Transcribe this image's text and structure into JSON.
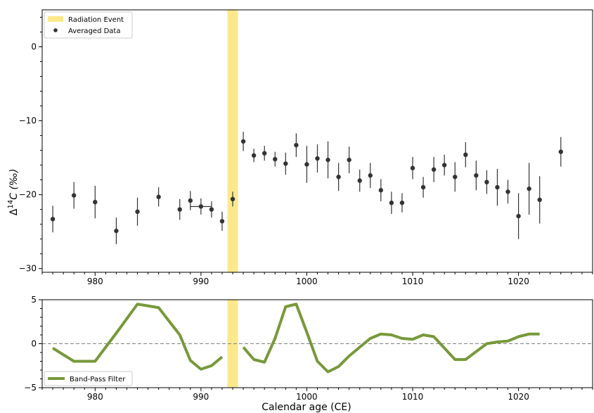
{
  "chart_data": [
    {
      "type": "scatter",
      "xlabel": "",
      "ylabel": "Δ",
      "ylabel_sup": "14",
      "ylabel_rest": "C (‰)",
      "xlim": [
        975,
        1027
      ],
      "ylim": [
        -30.5,
        5
      ],
      "x_ticks": [
        980,
        990,
        1000,
        1010,
        1020
      ],
      "y_ticks": [
        0,
        -10,
        -20,
        -30
      ],
      "legend_position": "top-left",
      "radiation_event": {
        "name": "Radiation Event",
        "x_start": 992.5,
        "x_end": 993.5,
        "color": "#fde98c"
      },
      "series": [
        {
          "name": "Averaged Data",
          "color": "#333333",
          "points": [
            {
              "x": 976,
              "y": -23.3,
              "err": 1.8
            },
            {
              "x": 978,
              "y": -20.1,
              "err": 1.8
            },
            {
              "x": 980,
              "y": -21.0,
              "err": 2.2
            },
            {
              "x": 982,
              "y": -24.9,
              "err": 1.8
            },
            {
              "x": 984,
              "y": -22.3,
              "err": 1.9
            },
            {
              "x": 986,
              "y": -20.3,
              "err": 1.3
            },
            {
              "x": 988,
              "y": -22.0,
              "err": 1.4
            },
            {
              "x": 989,
              "y": -20.8,
              "err": 1.3
            },
            {
              "x": 990,
              "y": -21.6,
              "err": 1.1,
              "xerr": 1.0
            },
            {
              "x": 991,
              "y": -22.0,
              "err": 1.1
            },
            {
              "x": 992,
              "y": -23.6,
              "err": 1.3
            },
            {
              "x": 993,
              "y": -20.6,
              "err": 1.0
            },
            {
              "x": 994,
              "y": -12.8,
              "err": 1.3
            },
            {
              "x": 995,
              "y": -14.7,
              "err": 0.9
            },
            {
              "x": 996,
              "y": -14.4,
              "err": 1.0
            },
            {
              "x": 997,
              "y": -15.2,
              "err": 1.0
            },
            {
              "x": 998,
              "y": -15.8,
              "err": 1.5
            },
            {
              "x": 999,
              "y": -13.3,
              "err": 1.6
            },
            {
              "x": 1000,
              "y": -15.9,
              "err": 2.5
            },
            {
              "x": 1001,
              "y": -15.1,
              "err": 1.9
            },
            {
              "x": 1002,
              "y": -15.3,
              "err": 2.5
            },
            {
              "x": 1003,
              "y": -17.6,
              "err": 1.9
            },
            {
              "x": 1004,
              "y": -15.3,
              "err": 1.8
            },
            {
              "x": 1005,
              "y": -18.1,
              "err": 1.5
            },
            {
              "x": 1006,
              "y": -17.4,
              "err": 1.7
            },
            {
              "x": 1007,
              "y": -19.4,
              "err": 1.5
            },
            {
              "x": 1008,
              "y": -21.1,
              "err": 1.5
            },
            {
              "x": 1009,
              "y": -21.1,
              "err": 1.3
            },
            {
              "x": 1010,
              "y": -16.4,
              "err": 1.5
            },
            {
              "x": 1011,
              "y": -19.0,
              "err": 1.4
            },
            {
              "x": 1012,
              "y": -16.6,
              "err": 1.7
            },
            {
              "x": 1013,
              "y": -16.0,
              "err": 1.4
            },
            {
              "x": 1014,
              "y": -17.6,
              "err": 2.0
            },
            {
              "x": 1015,
              "y": -14.6,
              "err": 1.7
            },
            {
              "x": 1016,
              "y": -17.4,
              "err": 2.0
            },
            {
              "x": 1017,
              "y": -18.3,
              "err": 1.6
            },
            {
              "x": 1018,
              "y": -19.0,
              "err": 2.5
            },
            {
              "x": 1019,
              "y": -19.6,
              "err": 1.6
            },
            {
              "x": 1020,
              "y": -22.9,
              "err": 3.1
            },
            {
              "x": 1021,
              "y": -19.2,
              "err": 3.5
            },
            {
              "x": 1022,
              "y": -20.7,
              "err": 3.2
            },
            {
              "x": 1024,
              "y": -14.2,
              "err": 2.0
            }
          ]
        }
      ]
    },
    {
      "type": "line",
      "xlabel": "Calendar age (CE)",
      "ylabel": "",
      "xlim": [
        975,
        1027
      ],
      "ylim": [
        -5,
        5
      ],
      "x_ticks": [
        980,
        990,
        1000,
        1010,
        1020
      ],
      "y_ticks": [
        5,
        0,
        -5
      ],
      "zero_line": true,
      "legend_position": "bottom-left",
      "radiation_event": {
        "x_start": 992.5,
        "x_end": 993.5,
        "color": "#fde98c"
      },
      "series": [
        {
          "name": "Band-Pass Filter",
          "color": "#77993a",
          "segments": [
            {
              "x": [
                976,
                978,
                980,
                982,
                984,
                986,
                988,
                989,
                990,
                991,
                992
              ],
              "y": [
                -0.5,
                -2.0,
                -2.0,
                1.2,
                4.5,
                4.1,
                1.0,
                -1.9,
                -2.9,
                -2.5,
                -1.5
              ]
            },
            {
              "x": [
                994,
                995,
                996,
                997,
                998,
                999,
                1000,
                1001,
                1002,
                1003,
                1004,
                1005,
                1006,
                1007,
                1008,
                1009,
                1010,
                1011,
                1012,
                1013,
                1014,
                1015,
                1016,
                1017,
                1018,
                1019,
                1020,
                1021,
                1022
              ],
              "y": [
                -0.4,
                -1.8,
                -2.1,
                0.6,
                4.2,
                4.5,
                1.3,
                -2.0,
                -3.2,
                -2.6,
                -1.4,
                -0.4,
                0.6,
                1.1,
                1.0,
                0.6,
                0.5,
                1.0,
                0.8,
                -0.5,
                -1.8,
                -1.8,
                -0.9,
                0.0,
                0.2,
                0.3,
                0.8,
                1.1,
                1.1
              ]
            }
          ]
        }
      ]
    }
  ]
}
